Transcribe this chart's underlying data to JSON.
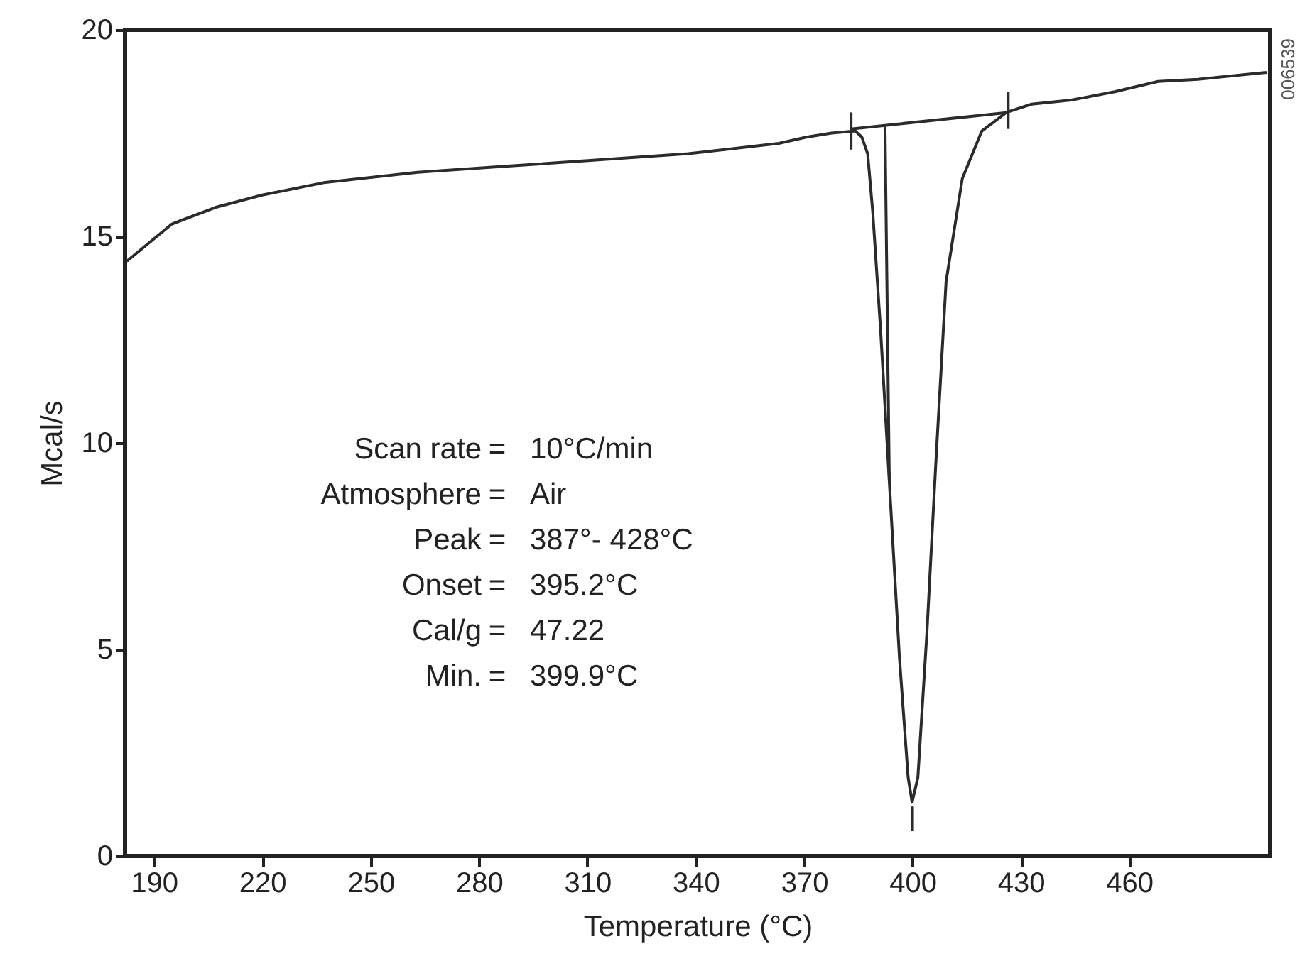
{
  "chart_data": {
    "type": "line",
    "xlabel": "Temperature (°C)",
    "ylabel": "Mcal/s",
    "xlim": [
      182,
      499
    ],
    "ylim": [
      0,
      20
    ],
    "xticks": [
      190,
      220,
      250,
      280,
      310,
      340,
      370,
      400,
      430,
      460
    ],
    "yticks": [
      0,
      5,
      10,
      15,
      20
    ],
    "grid": false,
    "legend": false,
    "marker": "none",
    "line_style": "solid",
    "series": [
      {
        "color": "#2b2b2b",
        "x": [
          182.5,
          195,
          207,
          220,
          237,
          263,
          288,
          313,
          338,
          363,
          370.6,
          377.6,
          384.2,
          386,
          387.6,
          389,
          391.2,
          393.6,
          396.4,
          398.8,
          399.9,
          401.5,
          404,
          406.4,
          409.3,
          413.8,
          419.2,
          426,
          433,
          444,
          456,
          468,
          479,
          498
        ],
        "values": [
          14.4,
          15.3,
          15.7,
          16.0,
          16.3,
          16.55,
          16.7,
          16.85,
          17.0,
          17.25,
          17.4,
          17.5,
          17.55,
          17.4,
          17.0,
          15.6,
          12.7,
          9.05,
          4.8,
          1.9,
          1.3,
          1.9,
          5.4,
          9.4,
          13.9,
          16.4,
          17.55,
          18.0,
          18.2,
          18.3,
          18.5,
          18.75,
          18.8,
          18.97
        ]
      },
      {
        "color": "#2b2b2b",
        "x": [
          383,
          426.5
        ],
        "values": [
          17.6,
          18.0
        ]
      },
      {
        "color": "#2b2b2b",
        "x": [
          392.4,
          393.6
        ],
        "values": [
          17.66,
          9.05
        ]
      },
      {
        "color": "#2b2b2b",
        "x": [
          383,
          383
        ],
        "values": [
          18.0,
          17.1
        ]
      },
      {
        "color": "#2b2b2b",
        "x": [
          426.5,
          426.5
        ],
        "values": [
          18.5,
          17.6
        ]
      },
      {
        "color": "#2b2b2b",
        "x": [
          400,
          400
        ],
        "values": [
          1.2,
          0.6
        ]
      }
    ],
    "annotations": [
      "Scan rate = 10°C/min",
      "Atmosphere = Air",
      "Peak = 387°- 428°C",
      "Onset = 395.2°C",
      "Cal/g = 47.22",
      "Min. = 399.9°C",
      "006539"
    ]
  }
}
